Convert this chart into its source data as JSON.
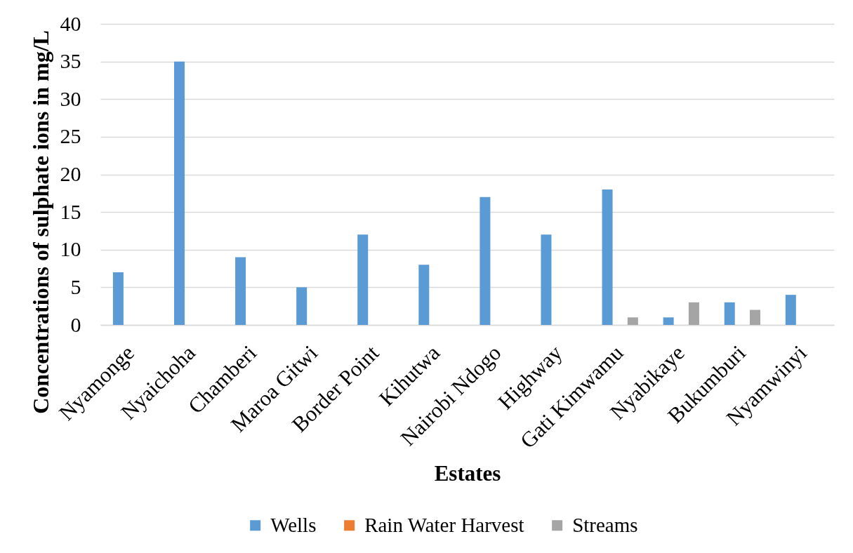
{
  "chart_data": {
    "type": "bar",
    "xlabel": "Estates",
    "ylabel": "Concentrations of sulphate ions in mg/L",
    "categories": [
      "Nyamonge",
      "Nyaichoha",
      "Chamberi",
      "Maroa Gitwi",
      "Border Point",
      "Kihutwa",
      "Nairobi Ndogo",
      "Highway",
      "Gati Kimwamu",
      "Nyabikaye",
      "Bukumburi",
      "Nyamwinyi"
    ],
    "series": [
      {
        "name": "Wells",
        "color": "#5b9bd5",
        "values": [
          7,
          35,
          9,
          5,
          12,
          8,
          17,
          12,
          18,
          1,
          3,
          4
        ]
      },
      {
        "name": "Rain Water Harvest",
        "color": "#ed7d31",
        "values": [
          null,
          null,
          null,
          null,
          null,
          null,
          null,
          null,
          null,
          null,
          null,
          null
        ]
      },
      {
        "name": "Streams",
        "color": "#a5a5a5",
        "values": [
          null,
          null,
          null,
          null,
          null,
          null,
          null,
          null,
          1,
          3,
          2,
          null
        ]
      }
    ],
    "ylim": [
      0,
      40
    ],
    "yticks": [
      0,
      5,
      10,
      15,
      20,
      25,
      30,
      35,
      40
    ],
    "grid": "y",
    "legend": "bottom"
  }
}
